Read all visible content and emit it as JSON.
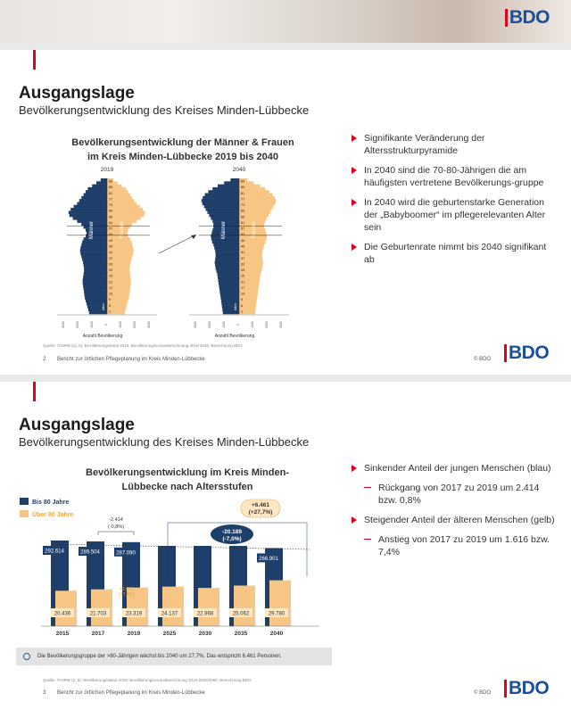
{
  "header_logo": "BDO",
  "slide1": {
    "title": "Ausgangslage",
    "subtitle": "Bevölkerungsentwicklung des Kreises Minden-Lübbecke",
    "chart_title_line1": "Bevölkerungsentwicklung der Männer & Frauen",
    "chart_title_line2": "im Kreis Minden-Lübbecke 2019 bis 2040",
    "bullets": [
      "Signifikante Veränderung der Altersstrukturpyramide",
      "In 2040 sind die 70-80-Jährigen die am häufigsten vertretene Bevölkerungs-gruppe",
      "In 2040 wird die geburtenstarke Generation der „Babyboomer“ im pflegerelevanten Alter sein",
      "Die Geburtenrate nimmt bis 2040 signifikant ab"
    ],
    "source": "Quelle: IT.NRW (1), 5); Bevölkerungsstand 2019, Bevölkerungsvorausberechnung 2018-2040; Berechnung BDO",
    "page_number": "2",
    "footer_text": "Bericht zur örtlichen Pflegeplanung im Kreis Minden-Lübbecke",
    "copyright": "© BDO",
    "logo": "BDO"
  },
  "slide2": {
    "title": "Ausgangslage",
    "subtitle": "Bevölkerungsentwicklung des Kreises Minden-Lübbecke",
    "chart_title_line1": "Bevölkerungsentwicklung im Kreis Minden-",
    "chart_title_line2": "Lübbecke nach Altersstufen",
    "bullets": [
      {
        "text": "Sinkender Anteil der jungen Menschen (blau)",
        "level": 1
      },
      {
        "text": "Rückgang von 2017 zu 2019 um 2.414 bzw. 0,8%",
        "level": 2
      },
      {
        "text": "Steigender Anteil der älteren Menschen (gelb)",
        "level": 1
      },
      {
        "text": "Anstieg von 2017 zu 2019 um 1.616 bzw. 7,4%",
        "level": 2
      }
    ],
    "note": "Die Bevölkerungsgruppe der >80-Jährigen wächst bis 2040 um 27,7%. Das entspricht 6.461 Personen.",
    "source": "Quelle: IT.NRW (2, 5); Bevölkerungsstand 2019; Bevölkerungsvorausberechnung 2019-2040/2060; Berechnung BDO",
    "page_number": "3",
    "footer_text": "Bericht zur örtlichen Pflegeplanung im Kreis Minden-Lübbecke",
    "copyright": "© BDO",
    "logo": "BDO"
  },
  "chart_data": [
    {
      "type": "bar",
      "title": "Bevölkerungsentwicklung der Männer & Frauen im Kreis Minden-Lübbecke 2019 bis 2040",
      "panels": [
        "2019",
        "2040"
      ],
      "series": [
        {
          "name": "Männer",
          "color": "#1f3f6b"
        },
        {
          "name": "Frauen",
          "color": "#f7c584"
        }
      ],
      "ylabel": "Alter",
      "xlabel": "Anzahl Bevölkerung",
      "age_ticks": [
        "89",
        "85",
        "81",
        "77",
        "73",
        "69",
        "65",
        "61",
        "57",
        "53",
        "49",
        "45",
        "41",
        "37",
        "33",
        "29",
        "25",
        "21",
        "17",
        "13",
        "9",
        "5",
        "1"
      ],
      "x_ticks": [
        "3000",
        "2000",
        "1000",
        "0",
        "1000",
        "2000",
        "3000"
      ],
      "profile_2019": [
        0.15,
        0.25,
        0.35,
        0.45,
        0.5,
        0.55,
        0.6,
        0.65,
        0.7,
        0.78,
        0.85,
        0.9,
        0.88,
        0.8,
        0.7,
        0.6,
        0.55,
        0.5,
        0.48,
        0.5,
        0.55,
        0.58,
        0.6,
        0.62,
        0.63,
        0.62,
        0.6,
        0.58,
        0.56,
        0.55,
        0.54,
        0.54,
        0.55,
        0.56,
        0.57,
        0.57,
        0.56,
        0.55,
        0.54,
        0.53,
        0.52,
        0.5,
        0.48,
        0.46,
        0.44,
        0.42
      ],
      "profile_2040": [
        0.2,
        0.35,
        0.5,
        0.62,
        0.72,
        0.8,
        0.85,
        0.88,
        0.86,
        0.82,
        0.78,
        0.74,
        0.7,
        0.66,
        0.62,
        0.6,
        0.6,
        0.62,
        0.64,
        0.66,
        0.65,
        0.63,
        0.6,
        0.58,
        0.56,
        0.55,
        0.55,
        0.56,
        0.57,
        0.56,
        0.55,
        0.53,
        0.51,
        0.5,
        0.49,
        0.48,
        0.47,
        0.46,
        0.45,
        0.44,
        0.43,
        0.42,
        0.41,
        0.4,
        0.39,
        0.38
      ]
    },
    {
      "type": "bar",
      "title": "Bevölkerungsentwicklung im Kreis Minden-Lübbecke nach Altersstufen",
      "categories": [
        "2015",
        "2017",
        "2019",
        "2025",
        "2030",
        "2035",
        "2040"
      ],
      "series": [
        {
          "name": "Bis 80 Jahre",
          "color": "#1f3f6b",
          "values": [
            292614,
            289504,
            287090,
            null,
            null,
            null,
            266901
          ],
          "labels": [
            "292.614",
            "289.504",
            "287.090",
            "",
            "",
            "",
            "266.901"
          ]
        },
        {
          "name": "Über 80 Jahre",
          "color": "#f7c584",
          "values": [
            20436,
            21703,
            23319,
            24137,
            22968,
            25062,
            29780
          ],
          "labels": [
            "20.436",
            "21.703",
            "23.319",
            "24.137",
            "22.968",
            "25.062",
            "29.780"
          ]
        }
      ],
      "annotations": {
        "diff_young": "-2.414",
        "diff_young_pct": "(-0,8%)",
        "diff_old": "+1.616",
        "diff_old_pct": "(+7,4%)",
        "total_young": "-20.189",
        "total_young_pct": "(-7,0%)",
        "total_old": "+6.461",
        "total_old_pct": "(+27,7%)"
      },
      "legend": "top-left"
    }
  ]
}
